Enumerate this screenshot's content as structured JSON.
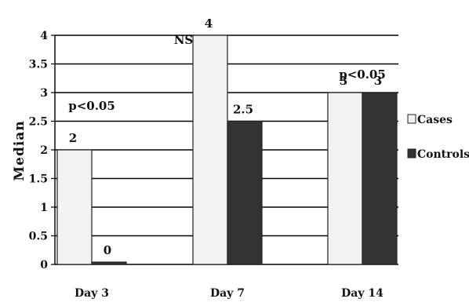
{
  "chart_data": {
    "type": "bar",
    "categories": [
      "Day 3",
      "Day 7",
      "Day 14"
    ],
    "series": [
      {
        "name": "Cases",
        "values": [
          2,
          4,
          3
        ],
        "labels": [
          "2",
          "4",
          "3"
        ],
        "color": "#f2f2f2"
      },
      {
        "name": "Controls",
        "values": [
          0,
          2.5,
          3
        ],
        "labels": [
          "0",
          "2.5",
          "3"
        ],
        "color": "#333333"
      }
    ],
    "ylabel": "Median",
    "ylim": [
      0,
      4
    ],
    "yticks": [
      0,
      0.5,
      1,
      1.5,
      2,
      2.5,
      3,
      3.5,
      4
    ],
    "grid": true,
    "legend": "right",
    "annotations": [
      {
        "text": "p<0.05",
        "category": "Day 3",
        "y": 2.7
      },
      {
        "text": "NS",
        "category": "Day 7",
        "y": 3.85
      },
      {
        "text": "p<0.05",
        "category": "Day 14",
        "y": 3.25
      }
    ]
  }
}
